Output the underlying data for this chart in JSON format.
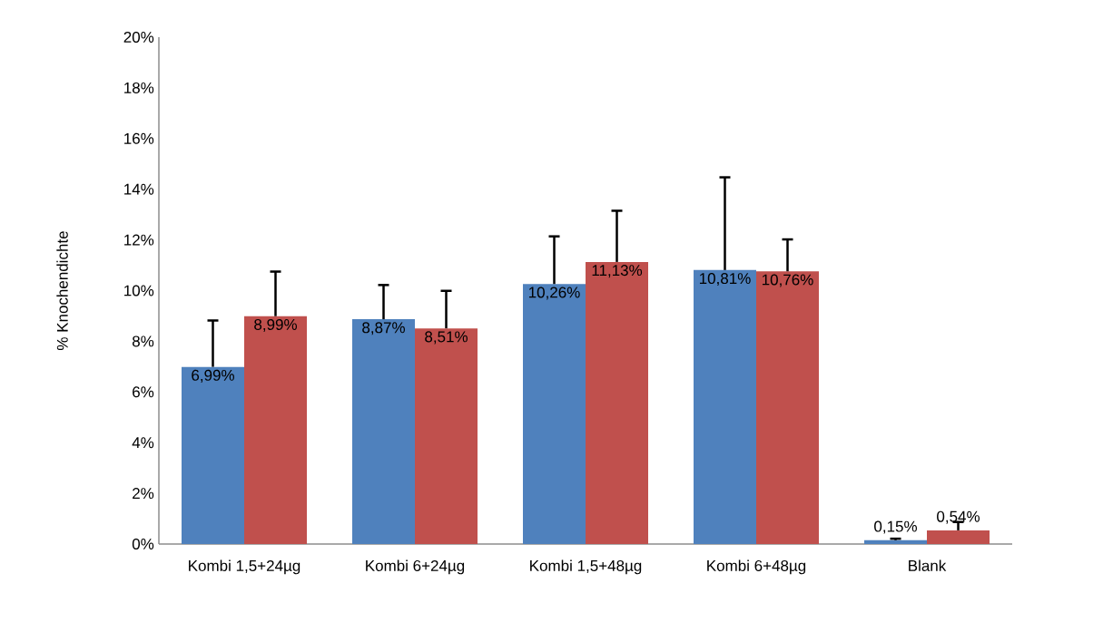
{
  "chart_data": {
    "type": "bar",
    "ylabel": "% Knochendichte",
    "categories": [
      "Kombi 1,5+24µg",
      "Kombi 6+24µg",
      "Kombi 1,5+48µg",
      "Kombi 6+48µg",
      "Blank"
    ],
    "series": [
      {
        "color": "#4f81bd",
        "values": [
          6.99,
          8.87,
          10.26,
          10.81,
          0.15
        ],
        "errors": [
          [
            6.99,
            8.82
          ],
          [
            8.87,
            10.22
          ],
          [
            10.26,
            12.14
          ],
          [
            10.81,
            14.47
          ],
          [
            0.15,
            0.21
          ]
        ],
        "value_labels": [
          "6,99%",
          "8,87%",
          "10,26%",
          "10,81%",
          "0,15%"
        ]
      },
      {
        "color": "#c0504d",
        "values": [
          8.99,
          8.51,
          11.13,
          10.76,
          0.54
        ],
        "errors": [
          [
            8.99,
            10.75
          ],
          [
            8.51,
            9.99
          ],
          [
            11.13,
            13.15
          ],
          [
            10.76,
            12.02
          ],
          [
            0.54,
            0.87
          ]
        ],
        "value_labels": [
          "8,99%",
          "8,51%",
          "11,13%",
          "10,76%",
          "0,54%"
        ]
      }
    ],
    "ylim": [
      0,
      20
    ],
    "yticks": [
      {
        "value": 0,
        "label": "0%"
      },
      {
        "value": 2,
        "label": "2%"
      },
      {
        "value": 4,
        "label": "4%"
      },
      {
        "value": 6,
        "label": "6%"
      },
      {
        "value": 8,
        "label": "8%"
      },
      {
        "value": 10,
        "label": "10%"
      },
      {
        "value": 12,
        "label": "12%"
      },
      {
        "value": 14,
        "label": "14%"
      },
      {
        "value": 16,
        "label": "16%"
      },
      {
        "value": 18,
        "label": "18%"
      },
      {
        "value": 20,
        "label": "20%"
      }
    ],
    "grid": false
  }
}
